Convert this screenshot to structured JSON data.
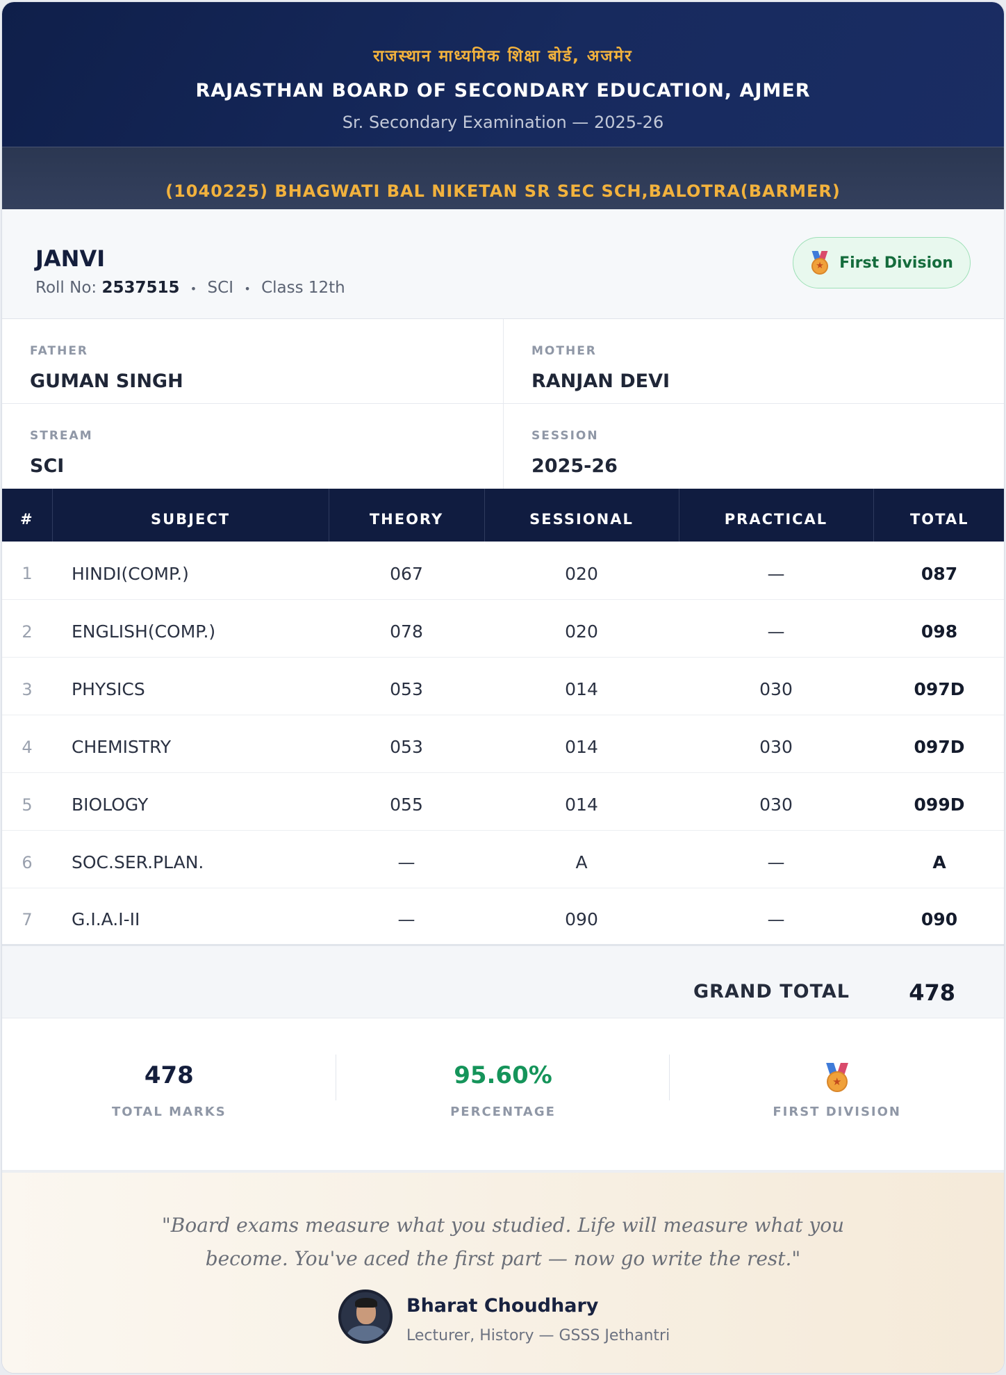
{
  "header": {
    "board_hindi": "राजस्थान माध्यमिक शिक्षा बोर्ड, अजमेर",
    "board_english": "RAJASTHAN BOARD OF SECONDARY EDUCATION, AJMER",
    "exam": "Sr. Secondary Examination — 2025-26"
  },
  "school": {
    "name": "(1040225) BHAGWATI BAL NIKETAN SR SEC SCH,BALOTRA(BARMER)"
  },
  "student": {
    "name": "JANVI",
    "roll_label": "Roll No:",
    "roll_no": "2537515",
    "stream": "SCI",
    "class": "Class 12th",
    "separator": "•",
    "division_badge": "First Division",
    "division_icon": "medal-icon"
  },
  "info": {
    "father_label": "FATHER",
    "father": "GUMAN SINGH",
    "mother_label": "MOTHER",
    "mother": "RANJAN DEVI",
    "stream_label": "STREAM",
    "stream": "SCI",
    "session_label": "SESSION",
    "session": "2025-26"
  },
  "marks": {
    "headers": [
      "#",
      "SUBJECT",
      "THEORY",
      "SESSIONAL",
      "PRACTICAL",
      "TOTAL"
    ],
    "rows": [
      {
        "n": "1",
        "subject": "HINDI(COMP.)",
        "theory": "067",
        "sessional": "020",
        "practical": "—",
        "total": "087"
      },
      {
        "n": "2",
        "subject": "ENGLISH(COMP.)",
        "theory": "078",
        "sessional": "020",
        "practical": "—",
        "total": "098"
      },
      {
        "n": "3",
        "subject": "PHYSICS",
        "theory": "053",
        "sessional": "014",
        "practical": "030",
        "total": "097D"
      },
      {
        "n": "4",
        "subject": "CHEMISTRY",
        "theory": "053",
        "sessional": "014",
        "practical": "030",
        "total": "097D"
      },
      {
        "n": "5",
        "subject": "BIOLOGY",
        "theory": "055",
        "sessional": "014",
        "practical": "030",
        "total": "099D"
      },
      {
        "n": "6",
        "subject": "SOC.SER.PLAN.",
        "theory": "—",
        "sessional": "A",
        "practical": "—",
        "total": "A"
      },
      {
        "n": "7",
        "subject": "G.I.A.I-II",
        "theory": "—",
        "sessional": "090",
        "practical": "—",
        "total": "090"
      }
    ],
    "grand_total_label": "GRAND TOTAL",
    "grand_total": "478"
  },
  "summary": {
    "total_marks": "478",
    "total_marks_label": "TOTAL MARKS",
    "percentage": "95.60%",
    "percentage_label": "PERCENTAGE",
    "division_label": "FIRST DIVISION",
    "percentage_color": "#15945a"
  },
  "quote": {
    "text": "\"Board exams measure what you studied. Life will measure what you become. You've aced the first part — now go write the rest.\"",
    "author": "Bharat Choudhary",
    "role": "Lecturer, History — GSSS Jethantri"
  },
  "colors": {
    "header_bg": "#0f1f4a",
    "accent_gold": "#f2b23d",
    "table_header_bg": "#101c40",
    "badge_green": "#146c3c"
  }
}
